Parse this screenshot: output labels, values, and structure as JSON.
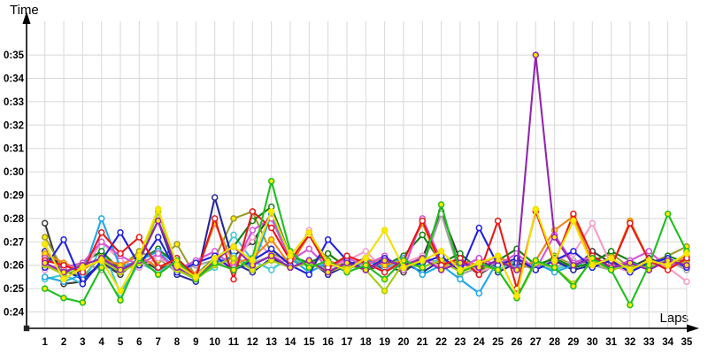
{
  "chart_data": {
    "type": "line",
    "title": "",
    "xlabel": "Laps",
    "ylabel": "Time",
    "x_tick_labels": [
      "1",
      "2",
      "3",
      "4",
      "5",
      "6",
      "7",
      "8",
      "9",
      "10",
      "11",
      "12",
      "13",
      "14",
      "15",
      "16",
      "17",
      "18",
      "19",
      "20",
      "21",
      "22",
      "23",
      "24",
      "25",
      "26",
      "27",
      "28",
      "29",
      "30",
      "31",
      "32",
      "33",
      "34",
      "35"
    ],
    "y_tick_values": [
      24,
      25,
      26,
      27,
      28,
      29,
      30,
      31,
      32,
      33,
      34,
      35
    ],
    "y_tick_labels": [
      "0:24",
      "0:25",
      "0:26",
      "0:27",
      "0:28",
      "0:29",
      "0:30",
      "0:31",
      "0:32",
      "0:33",
      "0:34",
      "0:35"
    ],
    "xlim": [
      1,
      35
    ],
    "ylim": [
      24,
      35
    ],
    "grid": true,
    "legend": "none",
    "style": {
      "background": "#ffffff",
      "grid_color": "#d8d8d8",
      "axis_color": "#000000",
      "tick_color": "#000000",
      "marker_white_fill": "#ffffff",
      "marker_yellow_fill": "#ffeb00"
    },
    "series": [
      {
        "name": "black",
        "color": "#3c3c3c",
        "marker_fill": "white",
        "values": [
          27.8,
          25.2,
          25.3,
          26.1,
          25.6,
          26.3,
          25.8,
          26.2,
          25.4,
          26.0,
          26.4,
          27.0,
          28.2,
          26.3,
          26.1,
          25.9,
          26.2,
          25.8,
          26.0,
          25.7,
          26.3,
          28.3,
          26.2,
          25.6,
          26.1,
          25.9,
          26.0,
          26.2,
          25.8,
          26.6,
          26.1,
          25.9,
          26.3,
          26.0,
          26.2
        ]
      },
      {
        "name": "olive",
        "color": "#9b9b2a",
        "marker_fill": "yellow",
        "values": [
          27.2,
          25.8,
          25.5,
          26.4,
          25.9,
          26.6,
          26.2,
          26.9,
          25.5,
          26.3,
          28.0,
          28.3,
          26.5,
          26.2,
          26.0,
          26.5,
          25.9,
          26.1,
          26.3,
          25.8,
          26.4,
          26.0,
          26.2,
          25.7,
          26.3,
          26.1,
          25.8,
          26.4,
          26.0,
          26.2,
          26.5,
          25.9,
          26.1,
          26.4,
          26.8
        ]
      },
      {
        "name": "turquoise",
        "color": "#3fc9cf",
        "marker_fill": "white",
        "values": [
          25.4,
          25.6,
          25.2,
          26.8,
          24.8,
          26.1,
          25.7,
          26.2,
          25.5,
          25.9,
          27.3,
          26.2,
          25.8,
          26.4,
          25.9,
          26.1,
          25.7,
          26.0,
          25.8,
          26.2,
          25.9,
          26.3,
          25.7,
          26.1,
          25.8,
          26.2,
          26.0,
          25.8,
          26.1,
          25.9,
          26.2,
          25.8,
          26.0,
          26.3,
          25.9
        ]
      },
      {
        "name": "gray",
        "color": "#a3a3a3",
        "marker_fill": "white",
        "values": [
          26.0,
          25.7,
          26.1,
          25.8,
          26.2,
          25.9,
          26.3,
          25.7,
          26.0,
          26.2,
          25.8,
          26.1,
          26.4,
          25.9,
          26.2,
          25.8,
          26.0,
          26.3,
          25.7,
          26.1,
          25.9,
          28.2,
          25.6,
          25.9,
          26.2,
          25.8,
          26.1,
          25.9,
          26.2,
          26.0,
          25.8,
          26.1,
          25.9,
          26.2,
          25.8
        ]
      },
      {
        "name": "dark-green",
        "color": "#128112",
        "marker_fill": "white",
        "values": [
          26.4,
          25.9,
          26.1,
          26.6,
          25.8,
          26.2,
          26.7,
          26.0,
          25.6,
          26.3,
          26.8,
          27.9,
          28.5,
          26.4,
          26.1,
          26.5,
          25.9,
          26.2,
          26.0,
          26.4,
          27.3,
          26.1,
          26.5,
          25.8,
          26.2,
          26.7,
          26.0,
          26.3,
          25.9,
          26.1,
          26.6,
          26.2,
          25.8,
          26.4,
          26.1
        ]
      },
      {
        "name": "navy",
        "color": "#26269c",
        "marker_fill": "white",
        "values": [
          26.6,
          25.8,
          25.4,
          26.1,
          25.7,
          26.3,
          27.9,
          25.6,
          25.3,
          28.9,
          26.1,
          25.7,
          26.3,
          25.9,
          26.2,
          25.6,
          26.0,
          26.3,
          25.8,
          26.1,
          25.7,
          26.2,
          25.9,
          26.3,
          25.7,
          26.1,
          25.9,
          26.2,
          25.8,
          26.0,
          26.3,
          25.8,
          26.1,
          25.9,
          26.2
        ]
      },
      {
        "name": "pink",
        "color": "#f79bc8",
        "marker_fill": "white",
        "values": [
          25.8,
          26.1,
          25.7,
          27.0,
          26.2,
          25.9,
          26.3,
          26.0,
          25.6,
          26.2,
          25.9,
          27.2,
          26.4,
          26.1,
          27.5,
          25.9,
          26.2,
          26.6,
          25.8,
          26.1,
          26.4,
          25.9,
          26.2,
          25.7,
          26.0,
          26.3,
          25.9,
          26.2,
          26.5,
          27.8,
          26.0,
          25.7,
          26.1,
          25.9,
          25.3
        ]
      },
      {
        "name": "cyan",
        "color": "#1fa6e8",
        "marker_fill": "white",
        "values": [
          25.5,
          25.3,
          25.6,
          28.0,
          25.9,
          26.2,
          26.6,
          25.8,
          25.4,
          26.1,
          26.4,
          25.9,
          28.2,
          26.3,
          25.7,
          26.1,
          25.8,
          26.2,
          25.9,
          26.3,
          25.6,
          26.0,
          25.4,
          24.8,
          26.2,
          25.9,
          26.1,
          25.7,
          26.0,
          26.3,
          25.8,
          26.1,
          25.9,
          26.2,
          26.0
        ]
      },
      {
        "name": "orange",
        "color": "#f08519",
        "marker_fill": "yellow",
        "values": [
          26.5,
          26.1,
          25.8,
          26.3,
          26.0,
          26.4,
          25.9,
          26.2,
          25.6,
          27.8,
          26.1,
          26.3,
          27.1,
          26.0,
          27.3,
          26.2,
          25.9,
          26.3,
          26.0,
          26.2,
          27.8,
          25.9,
          26.2,
          26.0,
          26.4,
          25.8,
          26.2,
          27.5,
          28.1,
          26.1,
          25.9,
          27.9,
          26.2,
          26.0,
          26.4
        ]
      },
      {
        "name": "orchid",
        "color": "#d554d5",
        "marker_fill": "white",
        "values": [
          26.3,
          25.9,
          26.1,
          27.0,
          26.4,
          26.0,
          26.5,
          25.8,
          26.2,
          26.6,
          25.9,
          27.5,
          28.0,
          26.2,
          26.7,
          25.9,
          26.3,
          26.0,
          26.4,
          25.8,
          28.0,
          26.2,
          25.9,
          26.3,
          26.0,
          26.5,
          25.8,
          27.3,
          26.1,
          26.4,
          25.9,
          26.2,
          26.6,
          25.9,
          26.3
        ]
      },
      {
        "name": "blue",
        "color": "#2020e0",
        "marker_fill": "white",
        "values": [
          25.9,
          27.1,
          25.2,
          26.2,
          27.4,
          26.0,
          27.2,
          25.7,
          26.1,
          26.4,
          25.8,
          26.2,
          26.7,
          26.0,
          25.6,
          27.1,
          26.2,
          25.8,
          26.3,
          25.9,
          26.1,
          26.4,
          25.7,
          27.6,
          26.0,
          26.3,
          25.8,
          26.2,
          26.6,
          25.9,
          26.2,
          25.7,
          26.1,
          26.3,
          25.9
        ]
      },
      {
        "name": "yellow-green",
        "color": "#a6cb14",
        "marker_fill": "yellow",
        "values": [
          26.0,
          25.6,
          25.9,
          26.2,
          25.7,
          26.1,
          28.3,
          25.8,
          25.4,
          26.0,
          26.3,
          25.8,
          26.2,
          25.9,
          26.1,
          25.7,
          26.0,
          25.8,
          24.9,
          26.1,
          25.9,
          26.2,
          25.7,
          26.0,
          25.8,
          24.6,
          26.1,
          25.9,
          25.2,
          26.2,
          25.8,
          26.0,
          25.9,
          26.2,
          26.1
        ]
      },
      {
        "name": "red",
        "color": "#e81717",
        "marker_fill": "white",
        "values": [
          26.2,
          26.0,
          25.7,
          27.4,
          26.5,
          27.2,
          25.9,
          26.3,
          25.5,
          28.0,
          25.4,
          28.3,
          27.6,
          26.2,
          27.3,
          25.9,
          26.4,
          26.1,
          25.7,
          26.2,
          27.9,
          26.0,
          26.3,
          25.6,
          27.9,
          25.0,
          28.3,
          26.1,
          28.2,
          26.4,
          25.9,
          27.8,
          26.2,
          25.8,
          26.3
        ]
      },
      {
        "name": "purple",
        "color": "#9326ae",
        "marker_fill": "yellow",
        "values": [
          26.1,
          25.7,
          26.0,
          26.3,
          25.8,
          26.2,
          27.9,
          25.9,
          25.5,
          26.2,
          26.8,
          26.0,
          26.4,
          25.9,
          26.2,
          25.7,
          26.1,
          25.8,
          26.2,
          26.0,
          26.3,
          25.8,
          26.1,
          25.9,
          26.2,
          25.8,
          35.0,
          27.2,
          26.0,
          26.3,
          25.9,
          26.1,
          25.8,
          26.2,
          26.0
        ]
      },
      {
        "name": "green",
        "color": "#1fbe1f",
        "marker_fill": "yellow",
        "values": [
          25.0,
          24.6,
          24.4,
          25.9,
          24.5,
          26.3,
          25.6,
          26.2,
          25.4,
          26.1,
          25.8,
          26.3,
          29.6,
          26.6,
          25.9,
          26.2,
          25.7,
          26.0,
          25.4,
          26.2,
          25.9,
          28.6,
          25.7,
          26.1,
          25.8,
          24.6,
          26.2,
          25.9,
          25.1,
          26.3,
          25.8,
          24.3,
          26.0,
          28.2,
          26.6
        ]
      },
      {
        "name": "yellow",
        "color": "#efe000",
        "marker_fill": "yellow",
        "values": [
          26.9,
          25.4,
          25.9,
          26.2,
          24.9,
          26.4,
          28.4,
          26.0,
          25.5,
          26.3,
          26.8,
          26.2,
          28.3,
          26.4,
          27.4,
          26.1,
          25.8,
          26.3,
          27.5,
          25.9,
          26.2,
          26.6,
          25.8,
          26.1,
          26.4,
          24.7,
          28.4,
          26.2,
          27.9,
          26.0,
          26.3,
          25.8,
          26.2,
          26.0,
          26.5
        ]
      }
    ]
  }
}
